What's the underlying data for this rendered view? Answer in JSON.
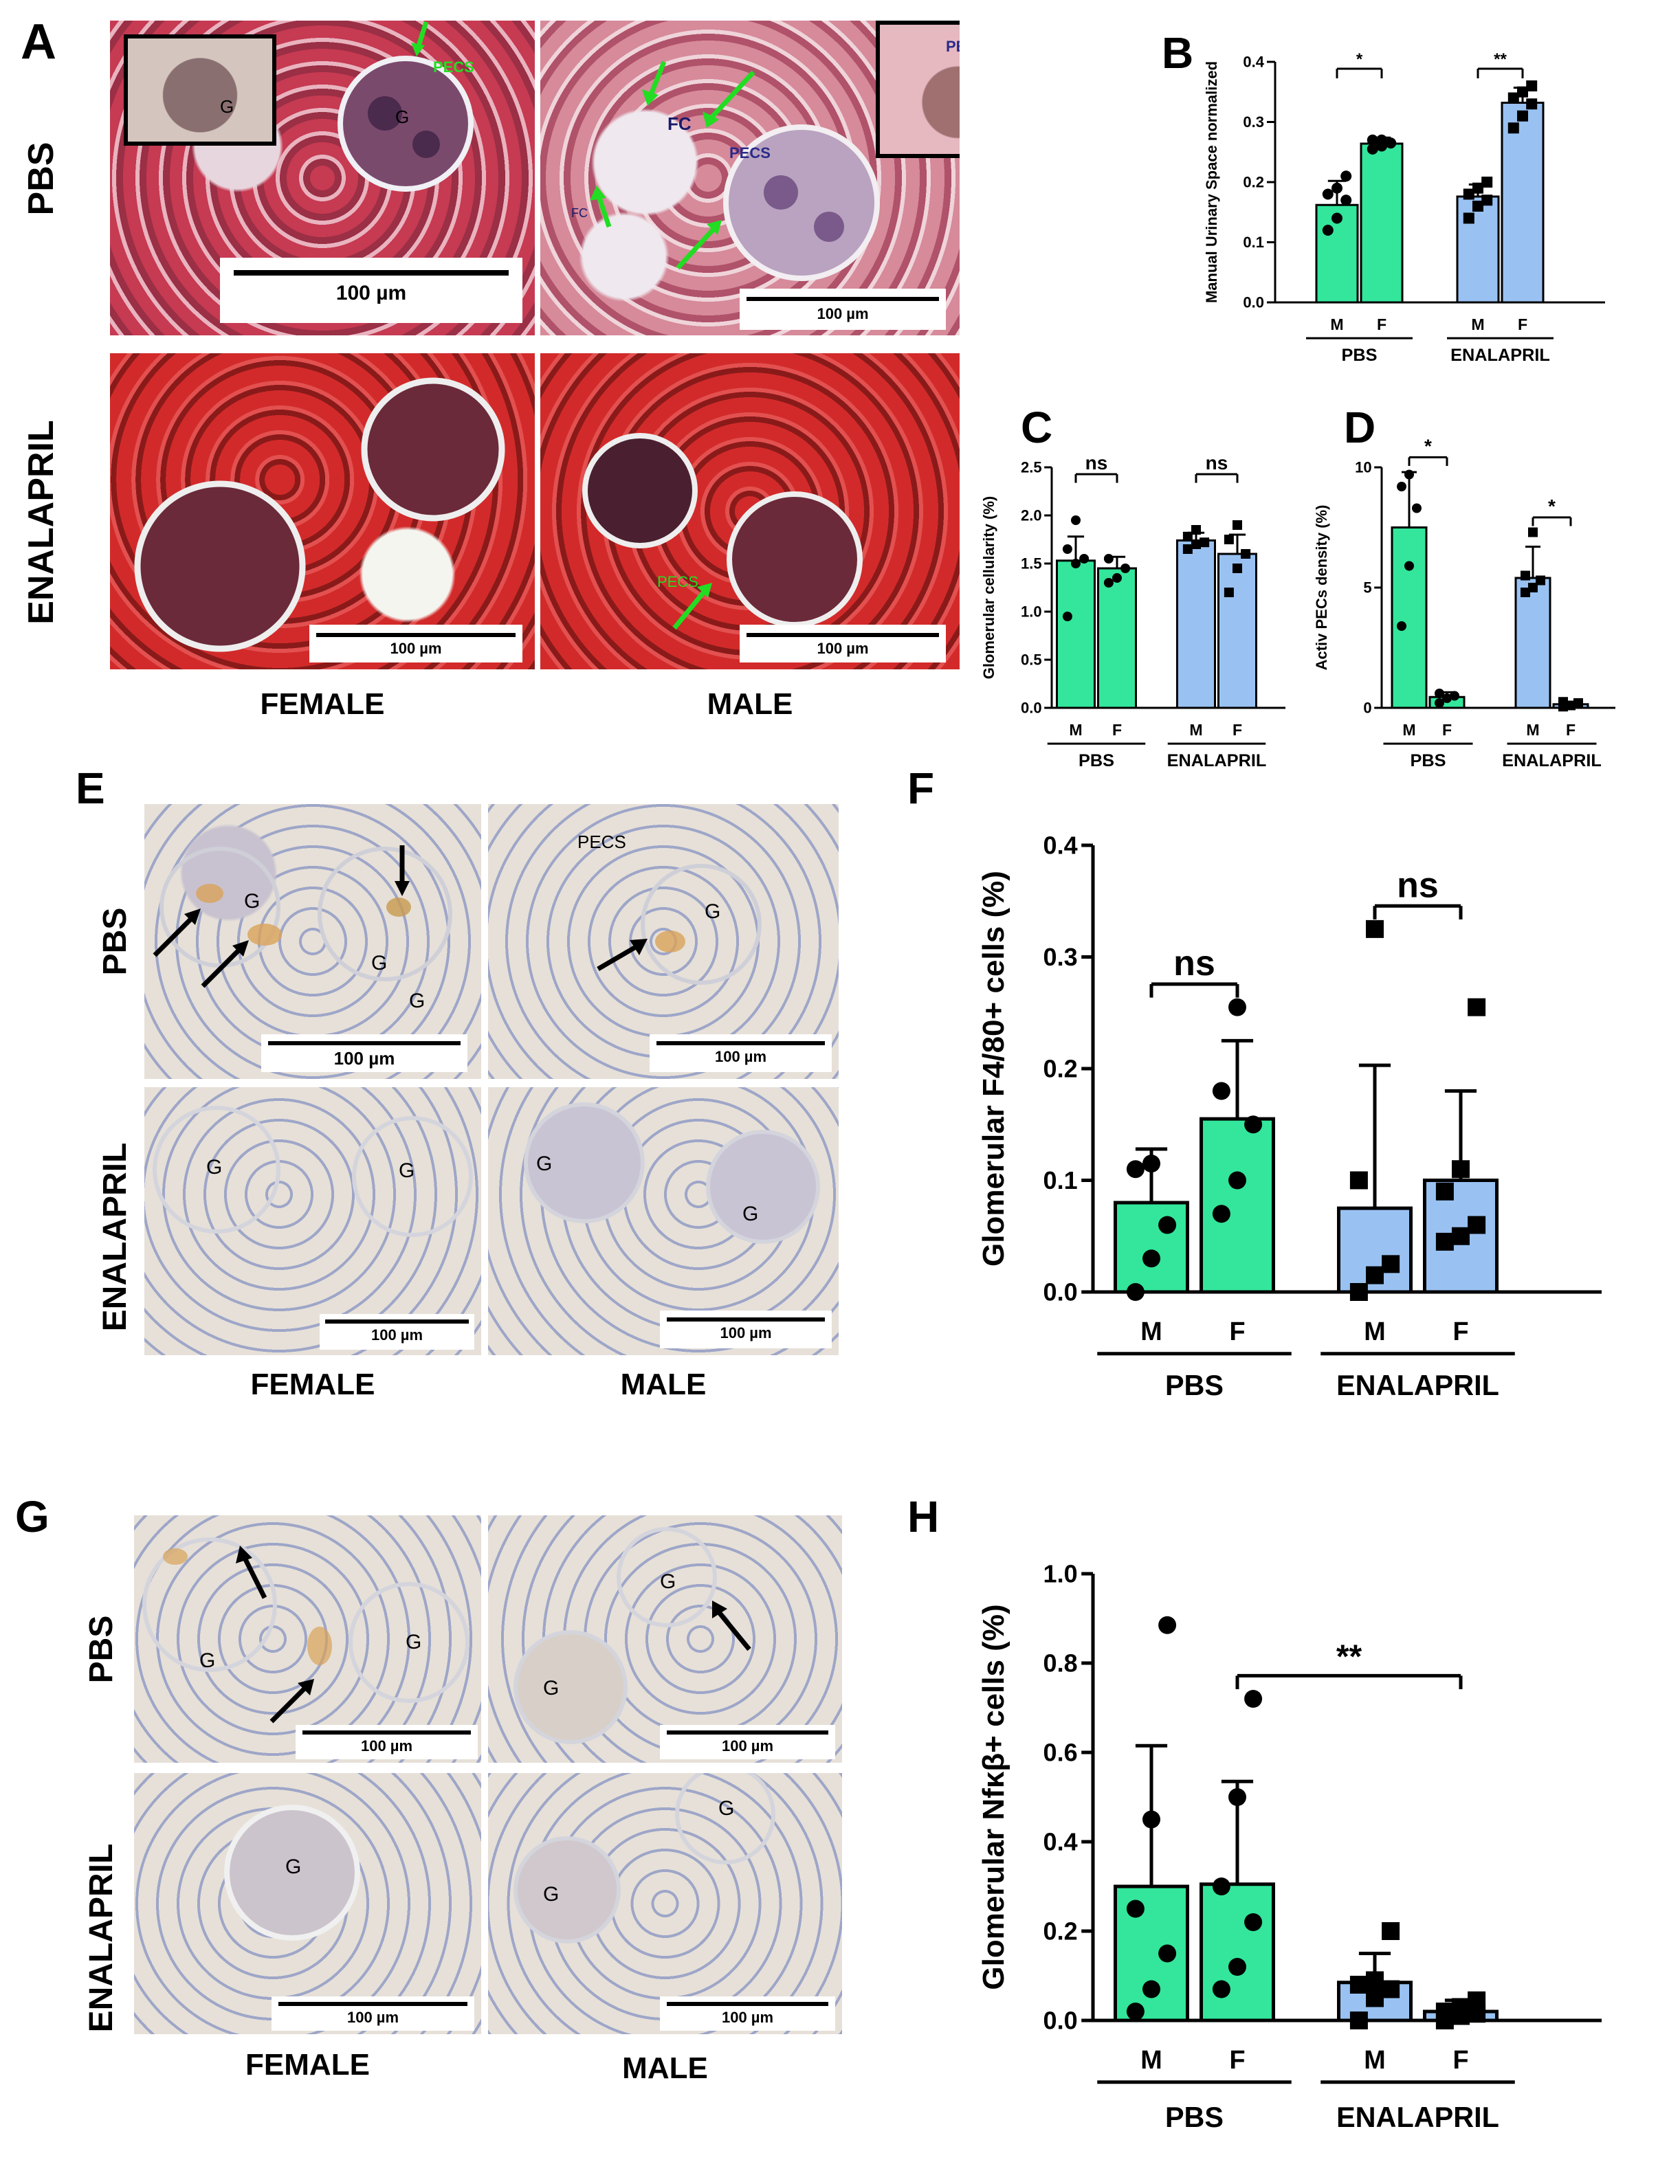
{
  "panels": {
    "A": {
      "label": "A",
      "row_labels": [
        "PBS",
        "ENALAPRIL"
      ],
      "col_labels": [
        "FEMALE",
        "MALE"
      ],
      "annotations": {
        "g": "G",
        "pecs": "PECS",
        "fc": "FC"
      },
      "scale_bar": "100 µm"
    },
    "E": {
      "label": "E",
      "row_labels": [
        "PBS",
        "ENALAPRIL"
      ],
      "col_labels": [
        "FEMALE",
        "MALE"
      ],
      "annotations": {
        "g": "G",
        "pecs": "PECS"
      },
      "scale_bar": "100 µm"
    },
    "G": {
      "label": "G",
      "row_labels": [
        "PBS",
        "ENALAPRIL"
      ],
      "col_labels": [
        "FEMALE",
        "MALE"
      ],
      "annotations": {
        "g": "G"
      },
      "scale_bar": "100 µm"
    }
  },
  "colors": {
    "green_bar": "#33e69b",
    "blue_bar": "#99c2f2",
    "trichrome_red": "#c03040",
    "ihc_bg": "#e6e2da",
    "arrow_green": "#22dd22"
  },
  "chart_data": [
    {
      "panel": "B",
      "type": "bar",
      "ylabel": "Manual Urinary Space normalized",
      "ylim": [
        0,
        0.4
      ],
      "yticks": [
        "0.0",
        "0.1",
        "0.2",
        "0.3",
        "0.4"
      ],
      "categories": [
        "M",
        "F",
        "M",
        "F"
      ],
      "groups": [
        "PBS",
        "ENALAPRIL"
      ],
      "values": [
        0.162,
        0.264,
        0.176,
        0.332
      ],
      "errors": [
        0.04,
        0.01,
        0.02,
        0.025
      ],
      "points": [
        [
          0.12,
          0.14,
          0.17,
          0.18,
          0.19,
          0.21
        ],
        [
          0.255,
          0.26,
          0.265,
          0.27,
          0.27
        ],
        [
          0.14,
          0.16,
          0.17,
          0.18,
          0.19,
          0.2
        ],
        [
          0.29,
          0.31,
          0.33,
          0.34,
          0.35,
          0.36
        ]
      ],
      "markers": [
        "circle",
        "circle",
        "square",
        "square"
      ],
      "sig": [
        {
          "text": "*",
          "pair": [
            0,
            1
          ]
        },
        {
          "text": "**",
          "pair": [
            2,
            3
          ]
        }
      ]
    },
    {
      "panel": "C",
      "type": "bar",
      "ylabel": "Glomerular cellularity (%)",
      "ylim": [
        0,
        2.5
      ],
      "yticks": [
        "0.0",
        "0.5",
        "1.0",
        "1.5",
        "2.0",
        "2.5"
      ],
      "categories": [
        "M",
        "F",
        "M",
        "F"
      ],
      "groups": [
        "PBS",
        "ENALAPRIL"
      ],
      "values": [
        1.53,
        1.45,
        1.74,
        1.6
      ],
      "errors": [
        0.25,
        0.12,
        0.08,
        0.2
      ],
      "points": [
        [
          0.95,
          1.5,
          1.55,
          1.65,
          1.95
        ],
        [
          1.3,
          1.35,
          1.45,
          1.55
        ],
        [
          1.65,
          1.7,
          1.72,
          1.78,
          1.85
        ],
        [
          1.2,
          1.45,
          1.6,
          1.75,
          1.9
        ]
      ],
      "markers": [
        "circle",
        "circle",
        "square",
        "square"
      ],
      "sig": [
        {
          "text": "ns",
          "pair": [
            0,
            1
          ]
        },
        {
          "text": "ns",
          "pair": [
            2,
            3
          ]
        }
      ]
    },
    {
      "panel": "D",
      "type": "bar",
      "ylabel": "Activ PECs density (%)",
      "ylim": [
        0,
        10
      ],
      "yticks": [
        "0",
        "5",
        "10"
      ],
      "categories": [
        "M",
        "F",
        "M",
        "F"
      ],
      "groups": [
        "PBS",
        "ENALAPRIL"
      ],
      "values": [
        7.5,
        0.45,
        5.4,
        0.15
      ],
      "errors": [
        2.3,
        0.2,
        1.3,
        0.1
      ],
      "points": [
        [
          3.4,
          5.9,
          8.3,
          9.2,
          9.7
        ],
        [
          0.2,
          0.4,
          0.5,
          0.6
        ],
        [
          4.8,
          5.0,
          5.3,
          5.5,
          7.3
        ],
        [
          0.05,
          0.1,
          0.2,
          0.25
        ]
      ],
      "markers": [
        "circle",
        "circle",
        "square",
        "square"
      ],
      "sig": [
        {
          "text": "*",
          "pair": [
            0,
            1
          ]
        },
        {
          "text": "*",
          "pair": [
            2,
            3
          ]
        }
      ]
    },
    {
      "panel": "F",
      "type": "bar",
      "ylabel": "Glomerular F4/80+ cells (%)",
      "ylim": [
        0,
        0.4
      ],
      "yticks": [
        "0.0",
        "0.1",
        "0.2",
        "0.3",
        "0.4"
      ],
      "categories": [
        "M",
        "F",
        "M",
        "F"
      ],
      "groups": [
        "PBS",
        "ENALAPRIL"
      ],
      "values": [
        0.08,
        0.155,
        0.075,
        0.1
      ],
      "errors": [
        0.048,
        0.07,
        0.128,
        0.08
      ],
      "points": [
        [
          0.0,
          0.03,
          0.06,
          0.11,
          0.115
        ],
        [
          0.07,
          0.1,
          0.15,
          0.18,
          0.255
        ],
        [
          0.0,
          0.015,
          0.025,
          0.1,
          0.325
        ],
        [
          0.045,
          0.05,
          0.06,
          0.09,
          0.11,
          0.255
        ]
      ],
      "markers": [
        "circle",
        "circle",
        "square",
        "square"
      ],
      "sig": [
        {
          "text": "ns",
          "pair": [
            0,
            1
          ]
        },
        {
          "text": "ns",
          "pair": [
            2,
            3
          ]
        }
      ]
    },
    {
      "panel": "H",
      "type": "bar",
      "ylabel": "Glomerular Nfκβ+ cells (%)",
      "ylim": [
        0,
        1.0
      ],
      "yticks": [
        "0.0",
        "0.2",
        "0.4",
        "0.6",
        "0.8",
        "1.0"
      ],
      "categories": [
        "M",
        "F",
        "M",
        "F"
      ],
      "groups": [
        "PBS",
        "ENALAPRIL"
      ],
      "values": [
        0.3,
        0.305,
        0.085,
        0.02
      ],
      "errors": [
        0.315,
        0.23,
        0.065,
        0.025
      ],
      "points": [
        [
          0.02,
          0.07,
          0.15,
          0.25,
          0.45,
          0.885
        ],
        [
          0.07,
          0.12,
          0.22,
          0.3,
          0.5,
          0.72
        ],
        [
          0.0,
          0.05,
          0.07,
          0.08,
          0.09,
          0.2
        ],
        [
          0.0,
          0.01,
          0.015,
          0.02,
          0.03,
          0.045
        ]
      ],
      "markers": [
        "circle",
        "circle",
        "square",
        "square"
      ],
      "sig": [
        {
          "text": "**",
          "pair": [
            1,
            3
          ]
        }
      ]
    }
  ]
}
